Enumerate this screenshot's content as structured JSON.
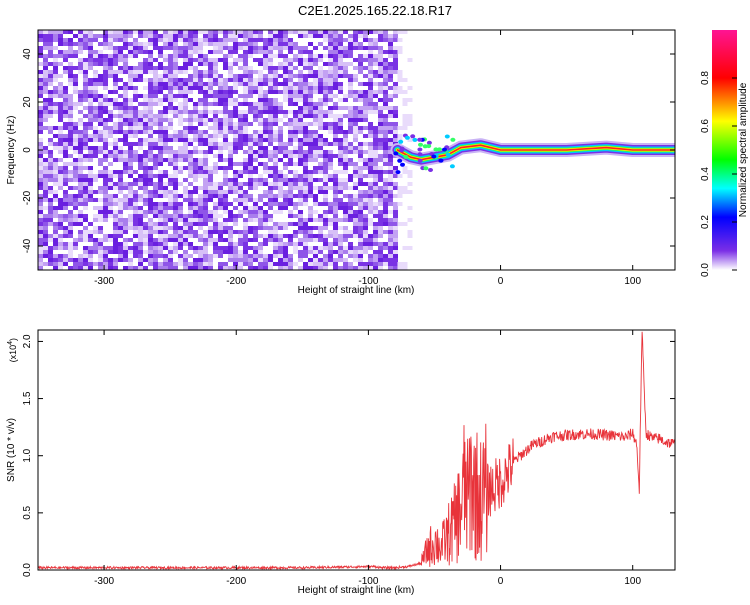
{
  "figure_title": "C2E1.2025.165.22.18.R17",
  "chart_data": [
    {
      "type": "heatmap",
      "title": "",
      "xlabel": "Height of straight line (km)",
      "ylabel": "Frequency (Hz)",
      "xlim": [
        -350,
        132
      ],
      "ylim": [
        -50,
        50
      ],
      "x_ticks": [
        -300,
        -200,
        -100,
        0,
        100
      ],
      "y_ticks": [
        -40,
        -20,
        0,
        20,
        40
      ],
      "x_tick_labels": [
        "-300",
        "-200",
        "-100",
        "0",
        "100"
      ],
      "y_tick_labels": [
        "-40",
        "-20",
        "0",
        "20",
        "40"
      ],
      "noise_region_end_km": -78,
      "signal_track": [
        {
          "x": -78,
          "y": 0
        },
        {
          "x": -68,
          "y": -3
        },
        {
          "x": -60,
          "y": -4
        },
        {
          "x": -50,
          "y": -3
        },
        {
          "x": -40,
          "y": -2
        },
        {
          "x": -30,
          "y": 1
        },
        {
          "x": -15,
          "y": 2
        },
        {
          "x": 0,
          "y": 0
        },
        {
          "x": 50,
          "y": 0
        },
        {
          "x": 80,
          "y": 1
        },
        {
          "x": 100,
          "y": 0
        },
        {
          "x": 132,
          "y": 0
        }
      ],
      "colorbar": {
        "label": "Normalized spectral amplitude",
        "range": [
          0,
          1
        ],
        "ticks": [
          0.0,
          0.2,
          0.4,
          0.6,
          0.8
        ],
        "tick_labels": [
          "0.0",
          "0.2",
          "0.4",
          "0.6",
          "0.8"
        ],
        "colors": [
          "#ffffff",
          "#7b2fe6",
          "#0000ff",
          "#00ffff",
          "#00ff00",
          "#ffff00",
          "#ff0000",
          "#ff1493"
        ]
      }
    },
    {
      "type": "line",
      "title": "",
      "xlabel": "Height of straight line (km)",
      "ylabel": "SNR (10 * v/v)",
      "y_multiplier_label": "(x10",
      "y_multiplier_exp": "4",
      "y_multiplier_close": ")",
      "xlim": [
        -350,
        132
      ],
      "ylim": [
        0,
        2.1
      ],
      "x_ticks": [
        -300,
        -200,
        -100,
        0,
        100
      ],
      "y_ticks": [
        0.0,
        0.5,
        1.0,
        1.5,
        2.0
      ],
      "x_tick_labels": [
        "-300",
        "-200",
        "-100",
        "0",
        "100"
      ],
      "y_tick_labels": [
        "0.0",
        "0.5",
        "1.0",
        "1.5",
        "2.0"
      ],
      "line_color": "#e8333a",
      "series": [
        {
          "x": [
            -350,
            -300,
            -250,
            -200,
            -150,
            -100,
            -95,
            -90,
            -80,
            -70,
            -60,
            -55,
            -50,
            -45,
            -40,
            -35,
            -30,
            -27,
            -25,
            -22,
            -20,
            -17,
            -15,
            -10,
            -5,
            0,
            5,
            10,
            15,
            20,
            25,
            30,
            35,
            40,
            50,
            60,
            70,
            80,
            90,
            95,
            100,
            103,
            105,
            107,
            110,
            115,
            120,
            125,
            132
          ],
          "y": [
            0.02,
            0.02,
            0.02,
            0.02,
            0.02,
            0.03,
            0.03,
            0.02,
            0.02,
            0.03,
            0.06,
            0.18,
            0.25,
            0.2,
            0.3,
            0.4,
            0.55,
            0.75,
            0.6,
            0.8,
            0.7,
            0.65,
            0.62,
            0.7,
            0.72,
            0.78,
            0.85,
            0.95,
            1.0,
            1.05,
            1.1,
            1.12,
            1.15,
            1.17,
            1.18,
            1.19,
            1.19,
            1.18,
            1.17,
            1.16,
            1.2,
            1.1,
            0.7,
            2.1,
            1.2,
            1.15,
            1.15,
            1.12,
            1.1
          ]
        }
      ]
    }
  ]
}
